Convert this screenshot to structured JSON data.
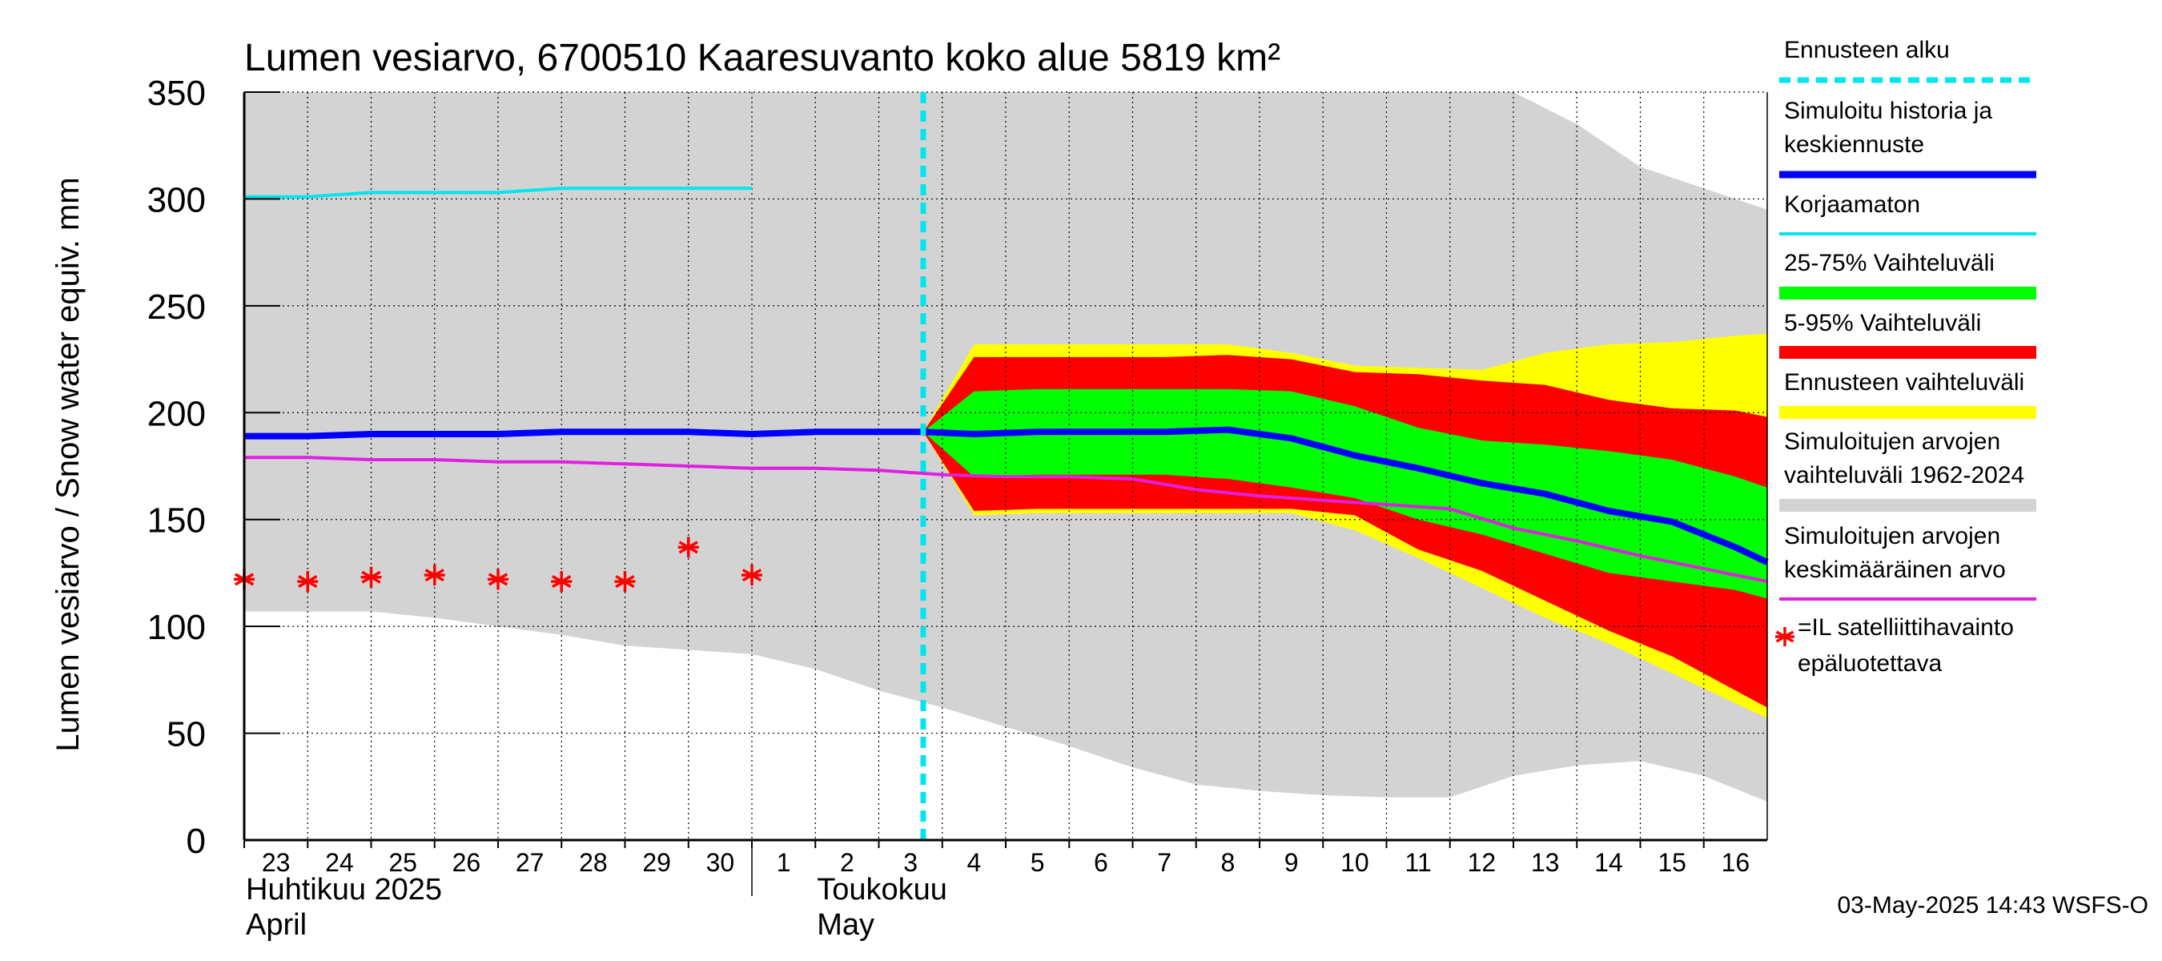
{
  "chart_data": {
    "type": "area",
    "title": "Lumen vesiarvo, 6700510 Kaaresuvanto koko alue 5819 km²",
    "ylabel": "Lumen vesiarvo / Snow water equiv.    mm",
    "ylim": [
      0,
      350
    ],
    "yticks": [
      "0",
      "50",
      "100",
      "150",
      "200",
      "250",
      "300",
      "350"
    ],
    "xlim": [
      -0.5,
      23.5
    ],
    "day_labels": [
      "23",
      "24",
      "25",
      "26",
      "27",
      "28",
      "29",
      "30",
      "1",
      "2",
      "3",
      "4",
      "5",
      "6",
      "7",
      "8",
      "9",
      "10",
      "11",
      "12",
      "13",
      "14",
      "15",
      "16"
    ],
    "month_labels": [
      {
        "line1": "Huhtikuu  2025",
        "line2": "April",
        "x": -0.5
      },
      {
        "line1": "Toukokuu",
        "line2": "May",
        "x": 8.5
      }
    ],
    "month_separator_x": 7.5,
    "forecast_start_x": 10.2,
    "series": [
      {
        "name": "Simuloitujen arvojen vaihteluväli 1962-2024",
        "kind": "band",
        "color": "#d3d3d3",
        "x": [
          -0.5,
          0.5,
          1.5,
          2.5,
          3.5,
          4.5,
          5.5,
          6.5,
          7.5,
          8.5,
          9.5,
          10.5,
          11.5,
          12.5,
          13.5,
          14.5,
          15.5,
          16.5,
          17.5,
          18.5,
          19.5,
          20.5,
          21.5,
          22.5,
          23.5
        ],
        "upper": [
          350,
          350,
          350,
          350,
          350,
          350,
          350,
          350,
          350,
          350,
          350,
          350,
          350,
          350,
          350,
          350,
          350,
          350,
          350,
          350,
          350,
          335,
          315,
          305,
          295
        ],
        "lower": [
          107,
          107,
          107,
          104,
          100,
          96,
          91,
          89,
          87,
          80,
          70,
          62,
          53,
          44,
          34,
          26,
          23,
          21,
          20,
          20,
          30,
          35,
          37,
          30,
          18
        ]
      },
      {
        "name": "Ennusteen vaihteluväli",
        "kind": "band",
        "color": "#ffff00",
        "x": [
          10.2,
          11.0,
          12.0,
          13.0,
          14.0,
          15.0,
          16.0,
          17.0,
          18.0,
          19.0,
          20.0,
          21.0,
          22.0,
          23.0,
          23.5
        ],
        "upper": [
          191,
          232,
          232,
          232,
          232,
          232,
          228,
          222,
          221,
          220,
          228,
          232,
          233,
          236,
          237
        ],
        "lower": [
          191,
          152,
          153,
          153,
          153,
          153,
          153,
          145,
          132,
          118,
          104,
          92,
          78,
          64,
          57
        ]
      },
      {
        "name": "5-95% Vaihteluväli",
        "kind": "band",
        "color": "#ff0000",
        "x": [
          10.2,
          11.0,
          12.0,
          13.0,
          14.0,
          15.0,
          16.0,
          17.0,
          18.0,
          19.0,
          20.0,
          21.0,
          22.0,
          23.0,
          23.5
        ],
        "upper": [
          191,
          226,
          226,
          226,
          226,
          227,
          225,
          219,
          218,
          215,
          213,
          206,
          202,
          201,
          198
        ],
        "lower": [
          191,
          154,
          155,
          155,
          155,
          155,
          155,
          152,
          136,
          126,
          112,
          98,
          86,
          70,
          62
        ]
      },
      {
        "name": "25-75% Vaihteluväli",
        "kind": "band",
        "color": "#00ff00",
        "x": [
          10.2,
          11.0,
          12.0,
          13.0,
          14.0,
          15.0,
          16.0,
          17.0,
          18.0,
          19.0,
          20.0,
          21.0,
          22.0,
          23.0,
          23.5
        ],
        "upper": [
          191,
          210,
          211,
          211,
          211,
          211,
          210,
          203,
          193,
          187,
          185,
          182,
          178,
          170,
          165
        ],
        "lower": [
          191,
          170,
          171,
          171,
          171,
          169,
          165,
          160,
          150,
          143,
          134,
          125,
          121,
          117,
          113
        ]
      },
      {
        "name": "Korjaamaton",
        "kind": "line",
        "color": "#00e5ee",
        "width": 4,
        "x": [
          -0.5,
          0.5,
          1.5,
          2.5,
          3.5,
          4.5,
          5.5,
          6.5,
          7.5
        ],
        "y": [
          301,
          301,
          303,
          303,
          303,
          305,
          305,
          305,
          305
        ]
      },
      {
        "name": "Simuloitujen arvojen keskimääräinen arvo",
        "kind": "line",
        "color": "#e020e0",
        "width": 4,
        "x": [
          -0.5,
          0.5,
          1.5,
          2.5,
          3.5,
          4.5,
          5.5,
          6.5,
          7.5,
          8.5,
          9.5,
          10.5,
          11.5,
          12.5,
          13.5,
          14.5,
          15.5,
          16.5,
          17.5,
          18.5,
          19.5,
          20.5,
          21.5,
          22.5,
          23.5
        ],
        "y": [
          179,
          179,
          178,
          178,
          177,
          177,
          176,
          175,
          174,
          174,
          173,
          171,
          170,
          170,
          169,
          164,
          161,
          159,
          157,
          155,
          146,
          140,
          133,
          127,
          121
        ]
      },
      {
        "name": "Simuloitu historia ja keskiennuste",
        "kind": "line",
        "color": "#0000ff",
        "width": 8,
        "x": [
          -0.5,
          0.5,
          1.5,
          2.5,
          3.5,
          4.5,
          5.5,
          6.5,
          7.5,
          8.5,
          9.5,
          10.2,
          11.0,
          12.0,
          13.0,
          14.0,
          15.0,
          16.0,
          17.0,
          18.0,
          19.0,
          20.0,
          21.0,
          22.0,
          23.0,
          23.5
        ],
        "y": [
          189,
          189,
          190,
          190,
          190,
          191,
          191,
          191,
          190,
          191,
          191,
          191,
          190,
          191,
          191,
          191,
          192,
          188,
          180,
          174,
          167,
          162,
          154,
          149,
          137,
          130
        ]
      },
      {
        "name": "=IL satelliittihavainto epäluotettava",
        "kind": "scatter",
        "marker": "asterisk",
        "color": "#ff0000",
        "x": [
          -0.5,
          0.5,
          1.5,
          2.5,
          3.5,
          4.5,
          5.5,
          6.5,
          7.5
        ],
        "y": [
          122,
          121,
          123,
          124,
          122,
          121,
          121,
          137,
          124
        ]
      }
    ],
    "legend": {
      "position": "right",
      "items": [
        {
          "label_lines": [
            "Ennusteen alku"
          ],
          "color": "#00e5ee",
          "style": "dashed"
        },
        {
          "label_lines": [
            "Simuloitu historia ja",
            "keskiennuste"
          ],
          "color": "#0000ff",
          "style": "line"
        },
        {
          "label_lines": [
            "Korjaamaton"
          ],
          "color": "#00e5ee",
          "style": "thin"
        },
        {
          "label_lines": [
            "25-75% Vaihteluväli"
          ],
          "color": "#00ff00",
          "style": "band"
        },
        {
          "label_lines": [
            "5-95% Vaihteluväli"
          ],
          "color": "#ff0000",
          "style": "band"
        },
        {
          "label_lines": [
            "Ennusteen vaihteluväli"
          ],
          "color": "#ffff00",
          "style": "band"
        },
        {
          "label_lines": [
            "Simuloitujen arvojen",
            "vaihteluväli 1962-2024"
          ],
          "color": "#d3d3d3",
          "style": "band"
        },
        {
          "label_lines": [
            "Simuloitujen arvojen",
            "keskimääräinen arvo"
          ],
          "color": "#e020e0",
          "style": "thin"
        },
        {
          "label_lines": [
            "=IL satelliittihavainto",
            "epäluotettava"
          ],
          "color": "#ff0000",
          "style": "asterisk"
        }
      ]
    },
    "timestamp": "03-May-2025 14:43 WSFS-O"
  }
}
